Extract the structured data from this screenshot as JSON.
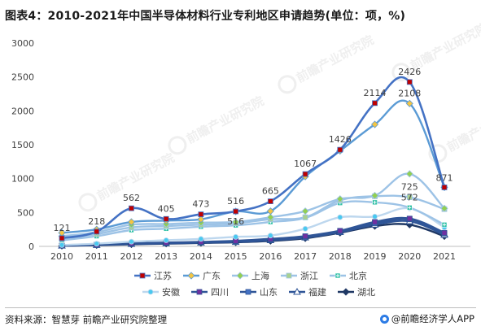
{
  "title": "图表4：2010-2021年中国半导体材料行业专利地区申请趋势(单位：项，%)",
  "source": "资料来源：智慧芽 前瞻产业研究院整理",
  "brand": "@前瞻经济学人APP",
  "watermark_text": "前瞻产业研究院",
  "chart_data": {
    "type": "line",
    "title": "图表4：2010-2021年中国半导体材料行业专利地区申请趋势(单位：项，%)",
    "xlabel": "",
    "ylabel": "",
    "ylim": [
      0,
      3000
    ],
    "yticks": [
      0,
      500,
      1000,
      1500,
      2000,
      2500,
      3000
    ],
    "grid": false,
    "legend_position": "bottom",
    "x": [
      "2010",
      "2011",
      "2012",
      "2013",
      "2014",
      "2015",
      "2016",
      "2017",
      "2018",
      "2019",
      "2020",
      "2021"
    ],
    "series": [
      {
        "name": "江苏",
        "color": "#4472c4",
        "marker": "square",
        "markerColor": "#c00000",
        "width": 2.6,
        "values": [
          121,
          218,
          562,
          405,
          473,
          516,
          665,
          1067,
          1426,
          2114,
          2426,
          871
        ],
        "labels": [
          121,
          218,
          562,
          405,
          473,
          516,
          665,
          1067,
          1426,
          2114,
          2426,
          871
        ]
      },
      {
        "name": "广东",
        "color": "#5b9bd5",
        "marker": "diamond",
        "markerColor": "#f4c542",
        "width": 2.4,
        "values": [
          200,
          250,
          360,
          380,
          400,
          516,
          520,
          1030,
          1410,
          1800,
          2108,
          871
        ],
        "labels": [
          null,
          null,
          null,
          null,
          null,
          516,
          null,
          null,
          null,
          null,
          2108,
          null
        ]
      },
      {
        "name": "上海",
        "color": "#9dc3e6",
        "marker": "diamond",
        "markerColor": "#92d050",
        "width": 2.4,
        "values": [
          150,
          210,
          320,
          330,
          350,
          360,
          430,
          520,
          700,
          750,
          1070,
          560
        ],
        "labels": [
          null,
          null,
          null,
          null,
          null,
          null,
          null,
          null,
          null,
          null,
          null,
          null
        ]
      },
      {
        "name": "浙江",
        "color": "#9dc3e6",
        "marker": "square",
        "markerColor": "#a9d18e",
        "width": 2.4,
        "values": [
          110,
          180,
          280,
          300,
          320,
          340,
          400,
          430,
          680,
          740,
          725,
          550
        ],
        "labels": [
          null,
          null,
          null,
          null,
          null,
          null,
          null,
          null,
          null,
          null,
          725,
          null
        ]
      },
      {
        "name": "北京",
        "color": "#9dc3e6",
        "marker": "star",
        "markerColor": "#2ebfa5",
        "width": 2.4,
        "values": [
          90,
          150,
          240,
          260,
          290,
          310,
          360,
          420,
          640,
          650,
          572,
          320
        ],
        "labels": [
          null,
          null,
          null,
          null,
          null,
          null,
          null,
          null,
          null,
          null,
          572,
          null
        ]
      },
      {
        "name": "安徽",
        "color": "#bdd7ee",
        "marker": "circle",
        "markerColor": "#48c9f0",
        "width": 2.4,
        "values": [
          20,
          40,
          70,
          90,
          110,
          140,
          160,
          260,
          430,
          440,
          560,
          280
        ],
        "labels": [
          null,
          null,
          null,
          null,
          null,
          null,
          null,
          null,
          null,
          null,
          null,
          null
        ]
      },
      {
        "name": "四川",
        "color": "#2f5597",
        "marker": "square",
        "markerColor": "#7030a0",
        "width": 2.6,
        "values": [
          15,
          25,
          45,
          55,
          65,
          80,
          110,
          150,
          230,
          360,
          410,
          200
        ],
        "labels": [
          null,
          null,
          null,
          null,
          null,
          null,
          null,
          null,
          null,
          null,
          null,
          null
        ]
      },
      {
        "name": "山东",
        "color": "#2f5597",
        "marker": "square",
        "markerColor": "#4472c4",
        "width": 2.6,
        "values": [
          12,
          22,
          40,
          50,
          60,
          75,
          100,
          140,
          220,
          340,
          400,
          190
        ],
        "labels": [
          null,
          null,
          null,
          null,
          null,
          null,
          null,
          null,
          null,
          null,
          null,
          null
        ]
      },
      {
        "name": "福建",
        "color": "#2f5597",
        "marker": "triangle",
        "markerColor": "#ffffff",
        "width": 2.4,
        "values": [
          10,
          20,
          35,
          45,
          55,
          65,
          90,
          130,
          210,
          320,
          370,
          170
        ],
        "labels": [
          null,
          null,
          null,
          null,
          null,
          null,
          null,
          null,
          null,
          null,
          null,
          null
        ]
      },
      {
        "name": "湖北",
        "color": "#1f3864",
        "marker": "diamond",
        "markerColor": "#1f3864",
        "width": 2.4,
        "values": [
          8,
          18,
          30,
          40,
          50,
          60,
          80,
          120,
          200,
          300,
          320,
          150
        ],
        "labels": [
          null,
          null,
          null,
          null,
          null,
          null,
          null,
          null,
          null,
          null,
          null,
          null
        ]
      }
    ]
  }
}
